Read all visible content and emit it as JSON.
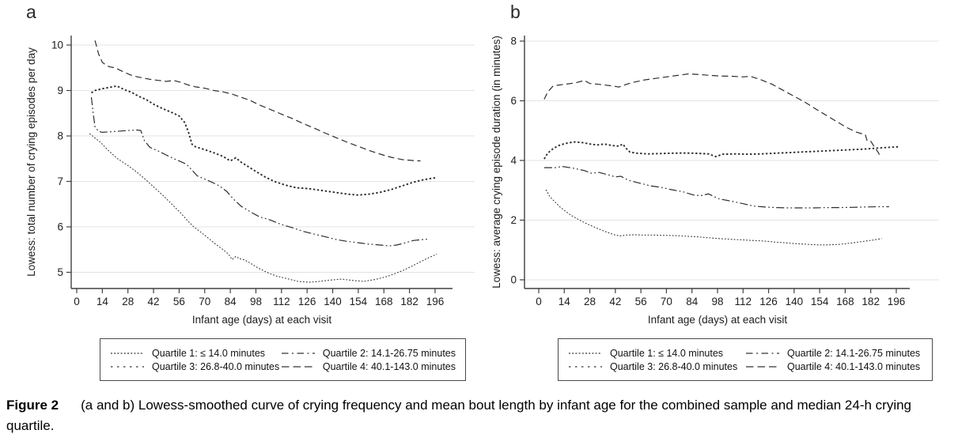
{
  "figure": {
    "caption_label": "Figure 2",
    "caption_text": "(a and b) Lowess-smoothed curve of crying frequency and mean bout length by infant age for the combined sample and median 24-h crying quartile."
  },
  "colors": {
    "curve": "#2d2d2d",
    "grid": "#e3e3e3",
    "axis": "#404040",
    "text": "#1d1d1d"
  },
  "legend": {
    "items": [
      {
        "label": "Quartile 1: ≤ 14.0 minutes",
        "style": "q1"
      },
      {
        "label": "Quartile 2: 14.1-26.75 minutes",
        "style": "q2"
      },
      {
        "label": "Quartile 3: 26.8-40.0 minutes",
        "style": "q3"
      },
      {
        "label": "Quartile 4: 40.1-143.0 minutes",
        "style": "q4"
      }
    ]
  },
  "chart_data": [
    {
      "type": "line",
      "panel_label": "a",
      "title": "",
      "xlabel": "Infant age (days) at each visit",
      "ylabel": "Lowess: total number of crying episodes per day",
      "xticks": [
        0,
        14,
        28,
        42,
        56,
        70,
        84,
        98,
        112,
        126,
        140,
        154,
        168,
        182,
        196
      ],
      "yticks": [
        5,
        6,
        7,
        8,
        9,
        10
      ],
      "xlim": [
        0,
        200
      ],
      "ylim": [
        4.6,
        10.2
      ],
      "grid": "horizontal",
      "legend_position": "bottom-box",
      "series": [
        {
          "name": "Quartile 1: ≤ 14.0 minutes",
          "style": "q1",
          "x": [
            7,
            13,
            17,
            22,
            28,
            33,
            38,
            42,
            47,
            52,
            57,
            61,
            64,
            68,
            72,
            76,
            80,
            83,
            85,
            87,
            89,
            92,
            95,
            99,
            104,
            109,
            115,
            121,
            127,
            133,
            139,
            145,
            151,
            157,
            163,
            169,
            174,
            179,
            184,
            189,
            193,
            197
          ],
          "y": [
            8.05,
            7.86,
            7.69,
            7.51,
            7.35,
            7.2,
            7.03,
            6.88,
            6.7,
            6.5,
            6.3,
            6.12,
            6.0,
            5.88,
            5.75,
            5.62,
            5.5,
            5.4,
            5.28,
            5.35,
            5.3,
            5.27,
            5.2,
            5.1,
            5.0,
            4.92,
            4.86,
            4.8,
            4.78,
            4.8,
            4.83,
            4.85,
            4.82,
            4.8,
            4.84,
            4.9,
            4.97,
            5.05,
            5.15,
            5.25,
            5.33,
            5.4
          ]
        },
        {
          "name": "Quartile 2: 14.1-26.75 minutes",
          "style": "q2",
          "x": [
            8,
            9,
            10,
            12,
            14,
            21,
            28,
            33,
            35,
            37,
            40,
            44,
            48,
            52,
            56,
            60,
            63,
            66,
            70,
            74,
            78,
            82,
            86,
            90,
            95,
            100,
            106,
            112,
            118,
            124,
            130,
            136,
            142,
            148,
            154,
            160,
            166,
            171,
            175,
            179,
            184,
            189,
            193
          ],
          "y": [
            8.85,
            8.5,
            8.2,
            8.1,
            8.08,
            8.1,
            8.12,
            8.13,
            8.12,
            7.9,
            7.75,
            7.68,
            7.6,
            7.52,
            7.45,
            7.38,
            7.25,
            7.12,
            7.05,
            6.98,
            6.9,
            6.78,
            6.6,
            6.45,
            6.33,
            6.22,
            6.15,
            6.05,
            5.98,
            5.9,
            5.84,
            5.78,
            5.72,
            5.68,
            5.65,
            5.62,
            5.6,
            5.58,
            5.6,
            5.64,
            5.7,
            5.72,
            5.73
          ]
        },
        {
          "name": "Quartile 3: 26.8-40.0 minutes",
          "style": "q3",
          "x": [
            8,
            10,
            14,
            18,
            22,
            26,
            30,
            34,
            38,
            42,
            46,
            50,
            53,
            56,
            59,
            61,
            63,
            65,
            70,
            75,
            80,
            84,
            87,
            90,
            94,
            98,
            103,
            108,
            114,
            120,
            127,
            134,
            141,
            148,
            154,
            160,
            166,
            172,
            178,
            184,
            190,
            196
          ],
          "y": [
            8.95,
            9.0,
            9.04,
            9.07,
            9.1,
            9.02,
            8.96,
            8.87,
            8.8,
            8.7,
            8.62,
            8.55,
            8.5,
            8.44,
            8.3,
            8.1,
            7.82,
            7.76,
            7.7,
            7.63,
            7.55,
            7.45,
            7.52,
            7.42,
            7.32,
            7.22,
            7.1,
            7.0,
            6.92,
            6.86,
            6.84,
            6.8,
            6.76,
            6.72,
            6.7,
            6.72,
            6.76,
            6.82,
            6.9,
            6.98,
            7.04,
            7.08
          ]
        },
        {
          "name": "Quartile 4: 40.1-143.0 minutes",
          "style": "q4",
          "x": [
            10,
            11,
            12,
            14,
            16,
            18,
            21,
            25,
            29,
            33,
            37,
            41,
            45,
            49,
            53,
            57,
            61,
            65,
            70,
            75,
            80,
            85,
            90,
            95,
            100,
            106,
            112,
            118,
            124,
            130,
            136,
            142,
            148,
            154,
            160,
            166,
            172,
            178,
            184,
            188
          ],
          "y": [
            10.1,
            9.95,
            9.8,
            9.62,
            9.56,
            9.52,
            9.5,
            9.42,
            9.35,
            9.3,
            9.27,
            9.24,
            9.22,
            9.2,
            9.22,
            9.18,
            9.12,
            9.08,
            9.05,
            9.0,
            8.97,
            8.92,
            8.85,
            8.78,
            8.68,
            8.58,
            8.48,
            8.38,
            8.27,
            8.17,
            8.06,
            7.96,
            7.86,
            7.77,
            7.68,
            7.6,
            7.53,
            7.48,
            7.46,
            7.45
          ]
        }
      ]
    },
    {
      "type": "line",
      "panel_label": "b",
      "title": "",
      "xlabel": "Infant age (days) at each visit",
      "ylabel": "Lowess: average crying episode duration (in minutes)",
      "xticks": [
        0,
        14,
        28,
        42,
        56,
        70,
        84,
        98,
        112,
        126,
        140,
        154,
        168,
        182,
        196
      ],
      "yticks": [
        0,
        2,
        4,
        6,
        8
      ],
      "xlim": [
        0,
        200
      ],
      "ylim": [
        -0.3,
        8.2
      ],
      "grid": "horizontal",
      "legend_position": "bottom-box",
      "series": [
        {
          "name": "Quartile 1: ≤ 14.0 minutes",
          "style": "q1",
          "x": [
            4,
            6,
            9,
            12,
            15,
            18,
            21,
            24,
            27,
            30,
            33,
            36,
            39,
            42,
            45,
            48,
            52,
            57,
            63,
            69,
            75,
            81,
            87,
            93,
            99,
            105,
            111,
            117,
            123,
            129,
            135,
            141,
            147,
            153,
            159,
            165,
            171,
            177,
            183,
            188
          ],
          "y": [
            3.02,
            2.8,
            2.6,
            2.42,
            2.28,
            2.15,
            2.05,
            1.95,
            1.86,
            1.78,
            1.7,
            1.63,
            1.56,
            1.5,
            1.47,
            1.5,
            1.51,
            1.5,
            1.5,
            1.49,
            1.48,
            1.46,
            1.44,
            1.41,
            1.38,
            1.36,
            1.34,
            1.32,
            1.3,
            1.27,
            1.24,
            1.21,
            1.19,
            1.17,
            1.17,
            1.19,
            1.23,
            1.28,
            1.33,
            1.38
          ]
        },
        {
          "name": "Quartile 2: 14.1-26.75 minutes",
          "style": "q2",
          "x": [
            3,
            9,
            13,
            19,
            25,
            29,
            33,
            38,
            42,
            45,
            49,
            54,
            58,
            61,
            67,
            72,
            79,
            85,
            89,
            93,
            99,
            106,
            112,
            118,
            124,
            130,
            137,
            144,
            151,
            158,
            165,
            172,
            179,
            186,
            192
          ],
          "y": [
            3.76,
            3.76,
            3.8,
            3.74,
            3.66,
            3.57,
            3.6,
            3.52,
            3.45,
            3.47,
            3.34,
            3.26,
            3.2,
            3.15,
            3.1,
            3.03,
            2.95,
            2.84,
            2.82,
            2.88,
            2.71,
            2.63,
            2.55,
            2.47,
            2.44,
            2.42,
            2.41,
            2.41,
            2.41,
            2.42,
            2.42,
            2.43,
            2.44,
            2.45,
            2.45
          ]
        },
        {
          "name": "Quartile 3: 26.8-40.0 minutes",
          "style": "q3",
          "x": [
            3,
            5,
            8,
            11,
            14,
            17,
            20,
            24,
            28,
            32,
            36,
            40,
            44,
            46,
            48,
            50,
            54,
            60,
            66,
            72,
            79,
            86,
            93,
            97,
            101,
            108,
            115,
            122,
            129,
            136,
            143,
            150,
            157,
            164,
            171,
            178,
            185,
            192,
            198
          ],
          "y": [
            4.05,
            4.25,
            4.4,
            4.5,
            4.56,
            4.6,
            4.62,
            4.6,
            4.55,
            4.52,
            4.55,
            4.5,
            4.48,
            4.55,
            4.4,
            4.28,
            4.24,
            4.22,
            4.23,
            4.24,
            4.25,
            4.24,
            4.22,
            4.13,
            4.21,
            4.22,
            4.21,
            4.22,
            4.24,
            4.26,
            4.28,
            4.3,
            4.32,
            4.34,
            4.36,
            4.38,
            4.41,
            4.44,
            4.46
          ]
        },
        {
          "name": "Quartile 4: 40.1-143.0 minutes",
          "style": "q4",
          "x": [
            3,
            5,
            8,
            14,
            20,
            25,
            28,
            33,
            40,
            44,
            48,
            52,
            58,
            64,
            70,
            76,
            82,
            88,
            94,
            100,
            106,
            112,
            116,
            122,
            128,
            134,
            140,
            146,
            152,
            158,
            164,
            169,
            174,
            178,
            179,
            180,
            182,
            184,
            186,
            187
          ],
          "y": [
            6.05,
            6.3,
            6.5,
            6.55,
            6.6,
            6.68,
            6.58,
            6.55,
            6.5,
            6.46,
            6.55,
            6.62,
            6.7,
            6.75,
            6.8,
            6.85,
            6.9,
            6.88,
            6.85,
            6.83,
            6.82,
            6.8,
            6.82,
            6.7,
            6.55,
            6.35,
            6.15,
            5.95,
            5.72,
            5.5,
            5.28,
            5.1,
            4.95,
            4.88,
            4.87,
            4.66,
            4.65,
            4.45,
            4.28,
            4.16
          ]
        }
      ]
    }
  ]
}
